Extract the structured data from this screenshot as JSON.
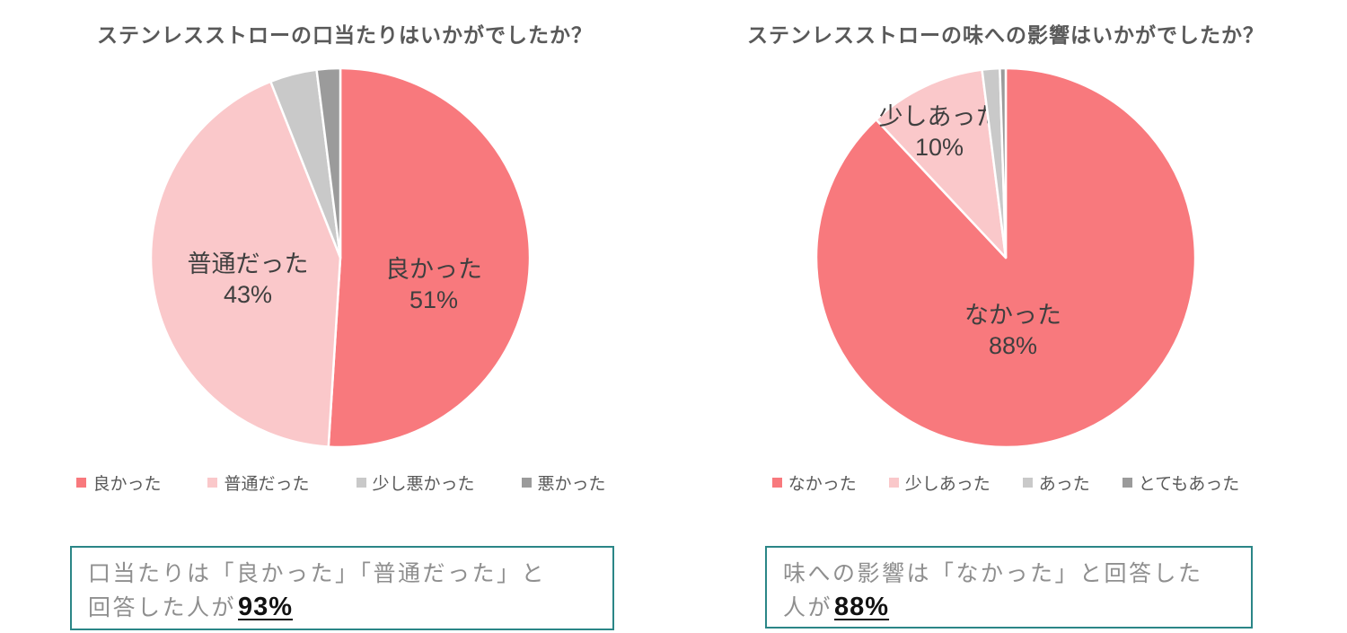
{
  "page": {
    "background": "#FFFFFF"
  },
  "chart_data": [
    {
      "type": "pie",
      "title": "ステンレスストローの口当たりはいかがでしたか？",
      "labels": [
        "良かった",
        "普通だった",
        "少し悪かった",
        "悪かった"
      ],
      "values": [
        51,
        43,
        4,
        2
      ],
      "displayed_value_labels": [
        "51%",
        "43%",
        "",
        ""
      ],
      "colors": [
        "#F8797D",
        "#FAC8CA",
        "#C9C9C9",
        "#9B9B9B"
      ],
      "start_angle_deg": 0,
      "direction": "clockwise",
      "legend": {
        "position": "bottom",
        "entries": [
          "良かった",
          "普通だった",
          "少し悪かった",
          "悪かった"
        ]
      }
    },
    {
      "type": "pie",
      "title": "ステンレスストローの味への影響はいかがでしたか？",
      "labels": [
        "なかった",
        "少しあった",
        "あった",
        "とてもあった"
      ],
      "values": [
        88,
        10,
        1.5,
        0.5
      ],
      "displayed_value_labels": [
        "88%",
        "10%",
        "",
        ""
      ],
      "colors": [
        "#F8797D",
        "#FAC8CA",
        "#C9C9C9",
        "#9B9B9B"
      ],
      "start_angle_deg": 0,
      "direction": "clockwise",
      "legend": {
        "position": "bottom",
        "entries": [
          "なかった",
          "少しあった",
          "あった",
          "とてもあった"
        ]
      }
    }
  ],
  "notes": [
    {
      "lines": [
        "口当たりは「良かった」「普通だった」と",
        "回答した人が"
      ],
      "highlight": "93%"
    },
    {
      "lines": [
        "味への影響は「なかった」と回答した",
        "人が"
      ],
      "highlight": "88%"
    }
  ],
  "style_colors": {
    "accent_red": "#F8797D",
    "accent_pink": "#FAC8CA",
    "gray_light": "#C9C9C9",
    "gray_dark": "#9B9B9B",
    "title_text": "#595959",
    "pie_label_text": "#3F3F3F",
    "note_border_teal": "#2B8687",
    "note_text": "#8F8F8F",
    "note_highlight": "#111111"
  }
}
